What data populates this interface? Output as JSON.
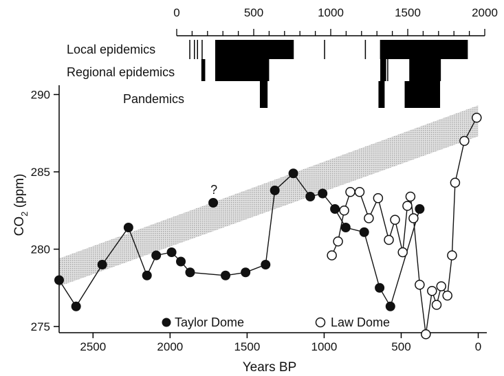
{
  "chart_data": {
    "type": "scatter",
    "xlabel": "Years BP",
    "ylabel": "CO",
    "ylabel_sub": "2",
    "ylabel_unit": " (ppm)",
    "xlim": [
      2720,
      -20
    ],
    "ylim": [
      274.6,
      290.6
    ],
    "x_ticks": [
      2500,
      2000,
      1500,
      1000,
      500,
      0
    ],
    "y_ticks": [
      275,
      280,
      285,
      290
    ],
    "top_axis": {
      "label": "",
      "ticks": [
        0,
        500,
        1000,
        1500,
        2000
      ],
      "ticks_labels": [
        "0",
        "500",
        "1000",
        "1500",
        "2000"
      ],
      "minor_step": 100
    },
    "series": [
      {
        "name": "Taylor Dome",
        "marker": "filled-circle",
        "points": [
          [
            2720,
            278.0
          ],
          [
            2610,
            276.3
          ],
          [
            2440,
            279.0
          ],
          [
            2270,
            281.4
          ],
          [
            2150,
            278.3
          ],
          [
            2090,
            279.6
          ],
          [
            1990,
            279.8
          ],
          [
            1930,
            279.2
          ],
          [
            1870,
            278.5
          ],
          [
            1640,
            278.3
          ],
          [
            1510,
            278.5
          ],
          [
            1380,
            279.0
          ],
          [
            1320,
            283.8
          ],
          [
            1200,
            284.9
          ],
          [
            1090,
            283.4
          ],
          [
            1010,
            283.6
          ],
          [
            930,
            282.6
          ],
          [
            860,
            281.4
          ],
          [
            740,
            281.1
          ],
          [
            640,
            277.5
          ],
          [
            570,
            276.3
          ],
          [
            380,
            282.6
          ]
        ]
      },
      {
        "name": "Law Dome",
        "marker": "open-circle",
        "points": [
          [
            950,
            279.6
          ],
          [
            910,
            280.5
          ],
          [
            870,
            282.5
          ],
          [
            830,
            283.7
          ],
          [
            770,
            283.7
          ],
          [
            710,
            282.0
          ],
          [
            650,
            283.3
          ],
          [
            580,
            280.6
          ],
          [
            540,
            281.9
          ],
          [
            490,
            279.8
          ],
          [
            460,
            282.8
          ],
          [
            440,
            283.4
          ],
          [
            420,
            282.0
          ],
          [
            380,
            277.7
          ],
          [
            340,
            274.5
          ],
          [
            300,
            277.3
          ],
          [
            270,
            276.4
          ],
          [
            240,
            277.6
          ],
          [
            200,
            277.0
          ],
          [
            170,
            279.6
          ],
          [
            150,
            284.3
          ],
          [
            90,
            287.0
          ],
          [
            10,
            288.5
          ]
        ]
      }
    ],
    "outlier_point": {
      "x": 1720,
      "y": 283.0,
      "annotation": "?"
    },
    "trend_band": {
      "start": [
        2720,
        277.6,
        279.4
      ],
      "end": [
        0,
        287.3,
        289.3
      ]
    },
    "epidemics": {
      "rows": [
        "Local epidemics",
        "Regional epidemics",
        "Pandemics"
      ],
      "local": {
        "lines": [
          85,
          115,
          135,
          165,
          960,
          1225
        ],
        "blocks": [
          [
            250,
            760
          ],
          [
            1320,
            1890
          ]
        ]
      },
      "regional": {
        "lines": [
          1325,
          1340,
          1370
        ],
        "blocks": [
          [
            160,
            185
          ],
          [
            250,
            600
          ],
          [
            1325,
            1360
          ],
          [
            1510,
            1715
          ]
        ]
      },
      "pandemics": {
        "blocks": [
          [
            540,
            590
          ],
          [
            1310,
            1350
          ],
          [
            1480,
            1710
          ]
        ]
      }
    }
  }
}
